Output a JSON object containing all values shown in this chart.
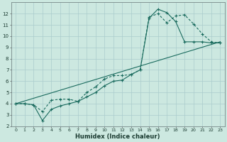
{
  "xlabel": "Humidex (Indice chaleur)",
  "bg_color": "#cce8e0",
  "grid_color": "#aacccc",
  "line_color": "#1a6b5e",
  "xlim": [
    -0.5,
    23.5
  ],
  "ylim": [
    2,
    13
  ],
  "xticks": [
    0,
    1,
    2,
    3,
    4,
    5,
    6,
    7,
    8,
    9,
    10,
    11,
    12,
    13,
    14,
    15,
    16,
    17,
    18,
    19,
    20,
    21,
    22,
    23
  ],
  "yticks": [
    2,
    3,
    4,
    5,
    6,
    7,
    8,
    9,
    10,
    11,
    12
  ],
  "line1_x": [
    0,
    1,
    2,
    3,
    4,
    5,
    6,
    7,
    8,
    9,
    10,
    11,
    12,
    13,
    14,
    15,
    16,
    17,
    18,
    19,
    20,
    21,
    22,
    23
  ],
  "line1_y": [
    4.0,
    4.0,
    3.9,
    2.5,
    3.5,
    3.8,
    4.0,
    4.2,
    4.6,
    5.0,
    5.6,
    6.0,
    6.1,
    6.6,
    7.0,
    11.6,
    12.4,
    12.1,
    11.3,
    9.5,
    9.5,
    9.5,
    9.4,
    9.4
  ],
  "line2_x": [
    0,
    1,
    2,
    3,
    4,
    5,
    6,
    7,
    8,
    9,
    10,
    11,
    12,
    13,
    14,
    15,
    16,
    17,
    18,
    19,
    20,
    21,
    22,
    23
  ],
  "line2_y": [
    4.0,
    4.0,
    3.9,
    3.3,
    4.3,
    4.4,
    4.4,
    4.2,
    5.0,
    5.5,
    6.2,
    6.5,
    6.5,
    6.6,
    7.0,
    11.7,
    12.0,
    11.2,
    11.8,
    11.9,
    11.1,
    10.2,
    9.5,
    9.4
  ],
  "line3_x": [
    0,
    23
  ],
  "line3_y": [
    4.0,
    9.5
  ]
}
